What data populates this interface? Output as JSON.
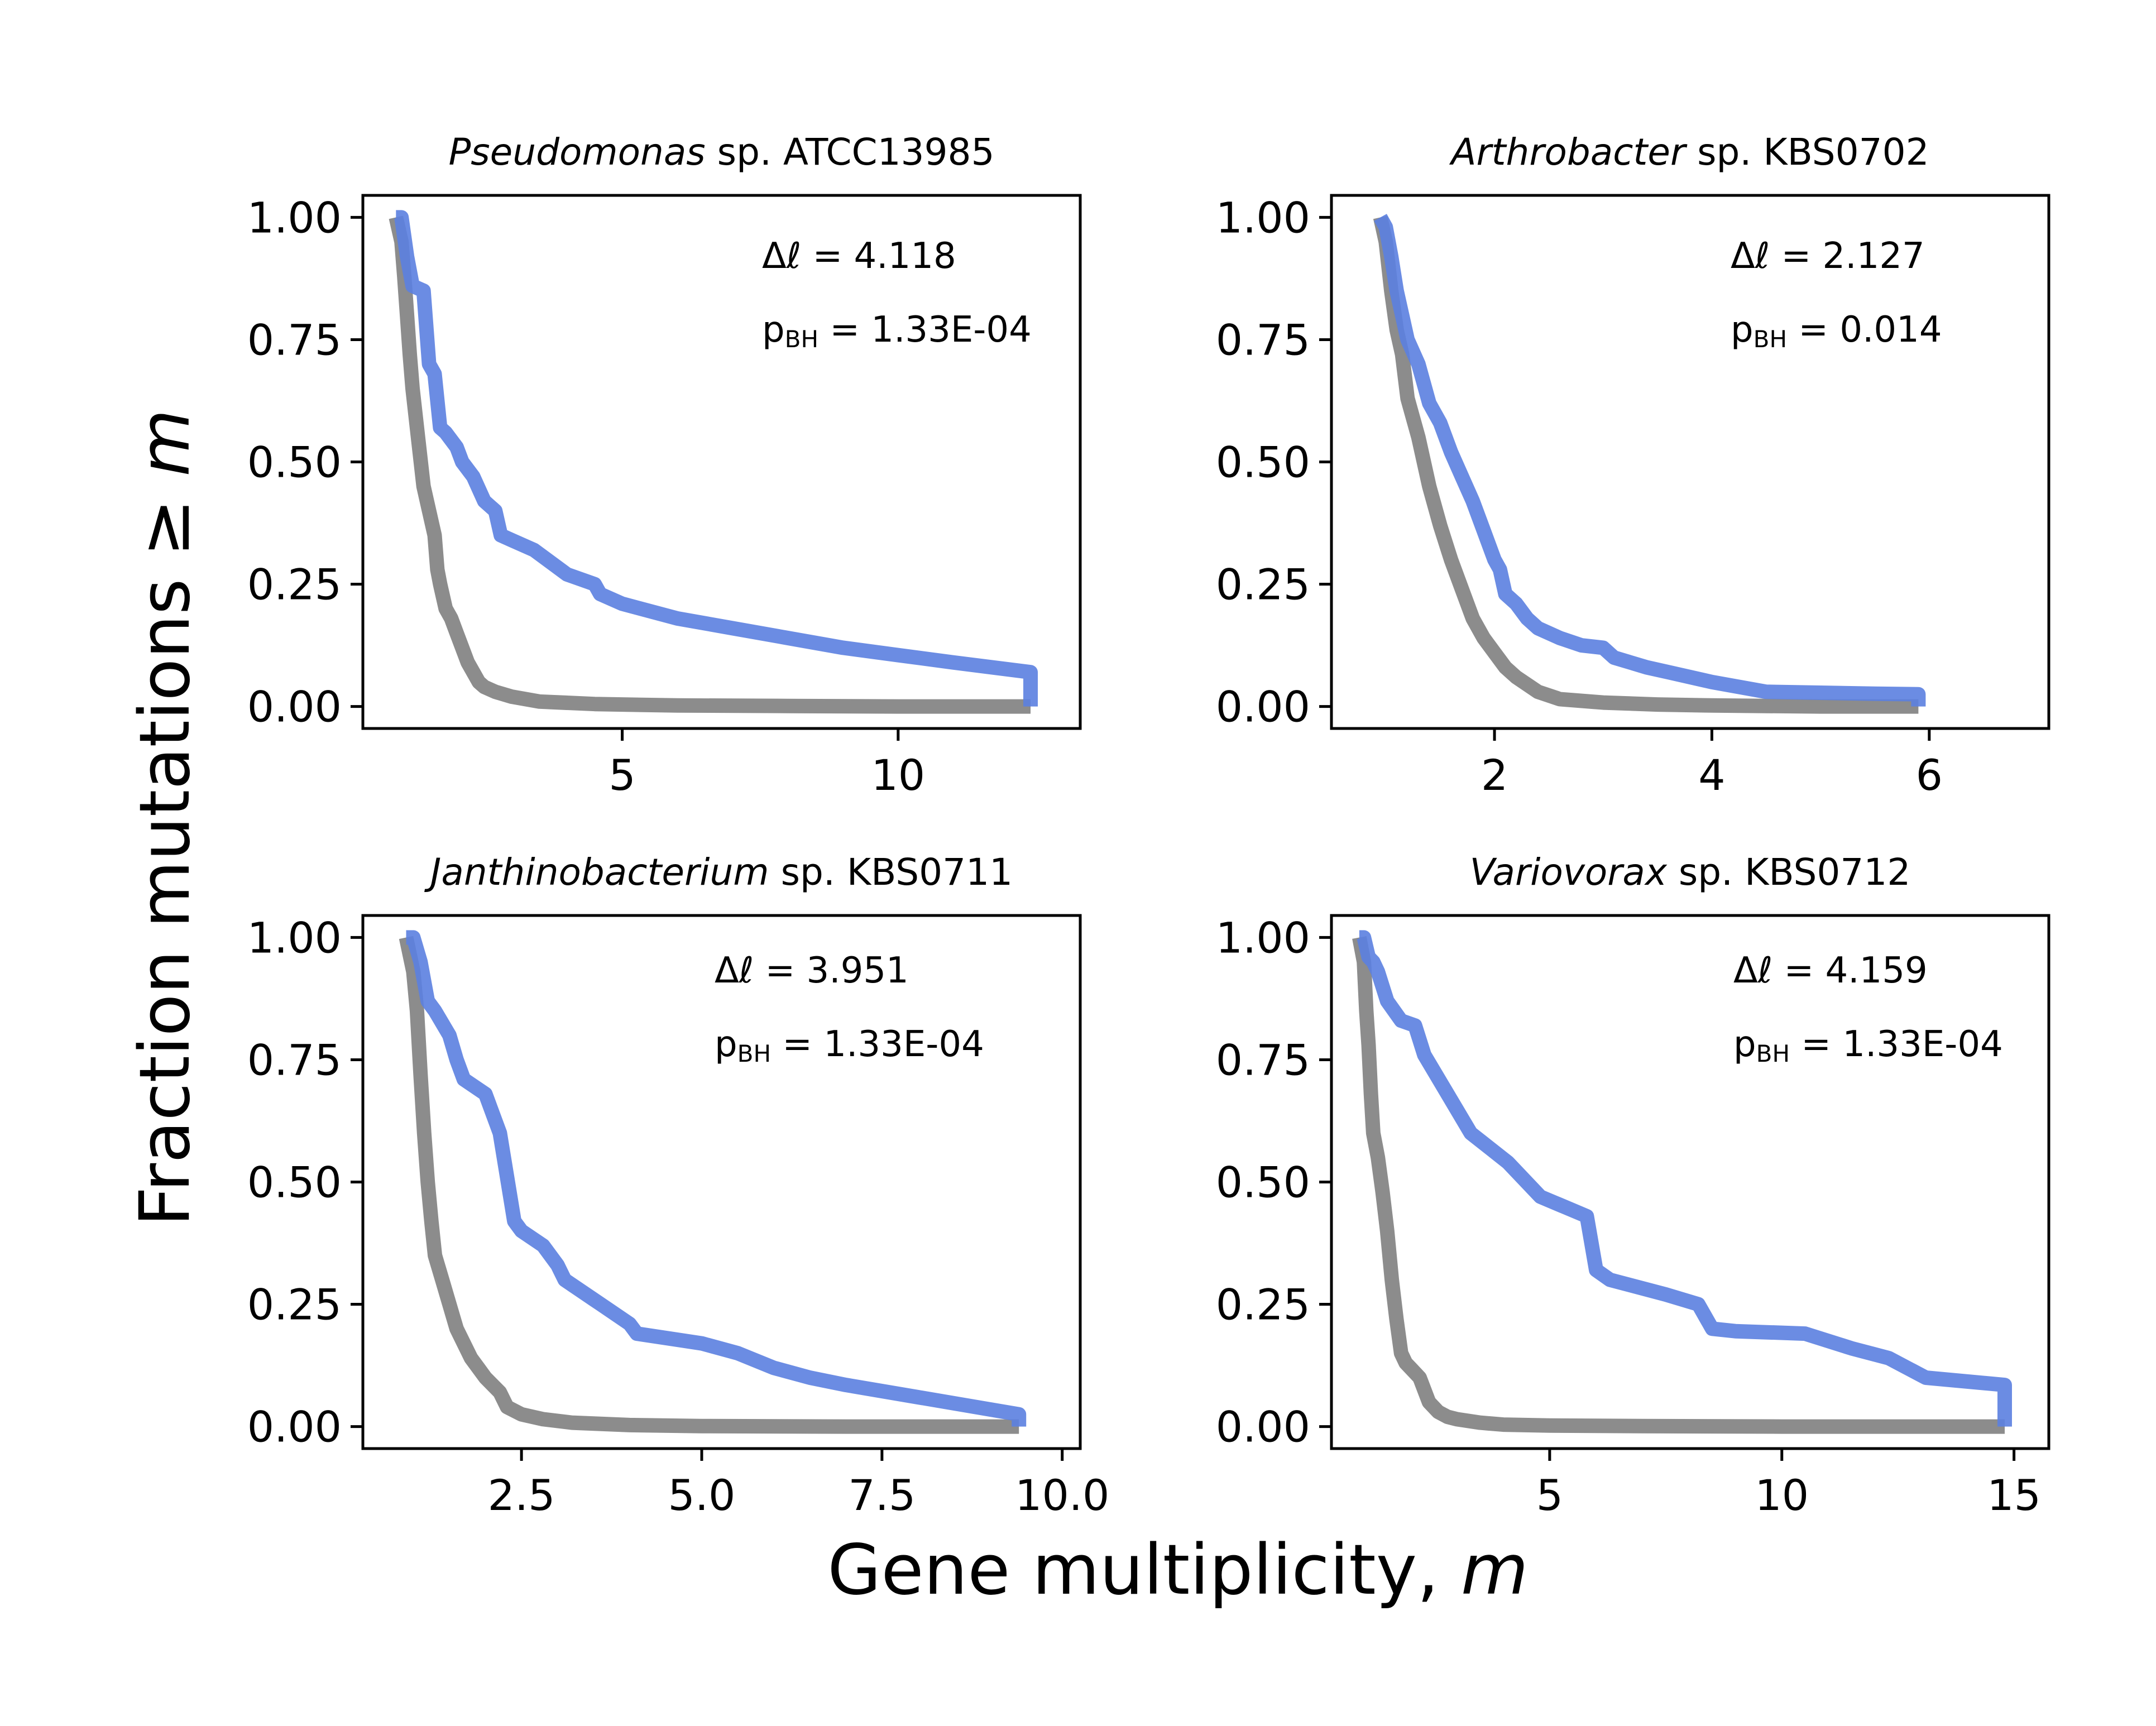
{
  "xlabel": "Gene multiplicity, ",
  "xlabel_var": "m",
  "ylabel": "Fraction mutations  ≥ ",
  "ylabel_var": "m",
  "colors": {
    "observed": "#5b7fe0",
    "null": "#7f7f7f"
  },
  "chart_data": [
    {
      "type": "line",
      "title_italic": "Pseudomonas",
      "title_rest": " sp. ATCC13985",
      "delta_label": "Δℓ = 4.118",
      "p_label_main": "p",
      "p_label_sub": "BH",
      "p_label_value": " = 1.33E-04",
      "xlim": [
        0.3,
        13.3
      ],
      "ylim": [
        -0.045,
        1.045
      ],
      "xticks": [
        5,
        10
      ],
      "xtick_labels": [
        "5",
        "10"
      ],
      "yticks": [
        0,
        0.25,
        0.5,
        0.75,
        1.0
      ],
      "ytick_labels": [
        "0.00",
        "0.25",
        "0.50",
        "0.75",
        "1.00"
      ],
      "series": [
        {
          "role": "null",
          "x": [
            0.9,
            1.0,
            1.05,
            1.1,
            1.15,
            1.2,
            1.3,
            1.4,
            1.5,
            1.6,
            1.65,
            1.7,
            1.8,
            1.9,
            2.0,
            2.1,
            2.2,
            2.3,
            2.4,
            2.5,
            2.7,
            3.0,
            3.5,
            4.5,
            6.0,
            8.0,
            10.0,
            12.4
          ],
          "y": [
            1.0,
            0.95,
            0.88,
            0.8,
            0.72,
            0.65,
            0.55,
            0.45,
            0.4,
            0.35,
            0.28,
            0.25,
            0.2,
            0.18,
            0.15,
            0.12,
            0.09,
            0.07,
            0.05,
            0.04,
            0.03,
            0.02,
            0.01,
            0.005,
            0.002,
            0.001,
            0.0,
            0.0
          ]
        },
        {
          "role": "observed",
          "x": [
            0.9,
            1.0,
            1.1,
            1.2,
            1.4,
            1.5,
            1.6,
            1.7,
            1.8,
            2.0,
            2.1,
            2.3,
            2.5,
            2.7,
            2.8,
            3.0,
            3.4,
            4.0,
            4.5,
            4.6,
            5.0,
            6.0,
            7.0,
            8.0,
            9.0,
            10.0,
            11.0,
            12.4,
            12.4
          ],
          "y": [
            1.0,
            1.0,
            0.92,
            0.86,
            0.85,
            0.7,
            0.68,
            0.57,
            0.56,
            0.53,
            0.5,
            0.47,
            0.42,
            0.4,
            0.35,
            0.34,
            0.32,
            0.27,
            0.25,
            0.23,
            0.21,
            0.18,
            0.16,
            0.14,
            0.12,
            0.105,
            0.09,
            0.07,
            0.0
          ]
        }
      ],
      "layout_note_px": null
    },
    {
      "type": "line",
      "title_italic": "Arthrobacter",
      "title_rest": " sp. KBS0702",
      "delta_label": "Δℓ = 2.127",
      "p_label_main": "p",
      "p_label_sub": "BH",
      "p_label_value": " = 0.014",
      "xlim": [
        0.5,
        7.1
      ],
      "ylim": [
        -0.045,
        1.045
      ],
      "xticks": [
        2,
        4,
        6
      ],
      "xtick_labels": [
        "2",
        "4",
        "6"
      ],
      "yticks": [
        0,
        0.25,
        0.5,
        0.75,
        1.0
      ],
      "ytick_labels": [
        "0.00",
        "0.25",
        "0.50",
        "0.75",
        "1.00"
      ],
      "series": [
        {
          "role": "null",
          "x": [
            0.95,
            1.0,
            1.05,
            1.1,
            1.15,
            1.2,
            1.3,
            1.4,
            1.5,
            1.6,
            1.7,
            1.8,
            1.9,
            2.0,
            2.1,
            2.2,
            2.4,
            2.6,
            3.0,
            3.5,
            4.0,
            4.5,
            5.0,
            5.5,
            5.9
          ],
          "y": [
            1.0,
            0.95,
            0.85,
            0.77,
            0.72,
            0.63,
            0.55,
            0.45,
            0.37,
            0.3,
            0.24,
            0.18,
            0.14,
            0.11,
            0.08,
            0.06,
            0.03,
            0.015,
            0.008,
            0.004,
            0.002,
            0.001,
            0.0,
            0.0,
            0.0
          ]
        },
        {
          "role": "observed",
          "x": [
            0.95,
            1.0,
            1.05,
            1.1,
            1.15,
            1.2,
            1.3,
            1.4,
            1.5,
            1.6,
            1.7,
            1.8,
            1.9,
            2.0,
            2.05,
            2.1,
            2.2,
            2.3,
            2.4,
            2.6,
            2.8,
            3.0,
            3.1,
            3.4,
            3.6,
            4.0,
            4.5,
            5.0,
            5.5,
            5.9,
            5.9
          ],
          "y": [
            1.0,
            0.98,
            0.92,
            0.85,
            0.8,
            0.75,
            0.7,
            0.62,
            0.58,
            0.52,
            0.47,
            0.42,
            0.36,
            0.3,
            0.28,
            0.23,
            0.21,
            0.18,
            0.16,
            0.14,
            0.125,
            0.12,
            0.1,
            0.08,
            0.07,
            0.05,
            0.03,
            0.028,
            0.026,
            0.025,
            0.0
          ]
        }
      ]
    },
    {
      "type": "line",
      "title_italic": "Janthinobacterium",
      "title_rest": " sp. KBS0711",
      "delta_label": "Δℓ = 3.951",
      "p_label_main": "p",
      "p_label_sub": "BH",
      "p_label_value": " = 1.33E-04",
      "xlim": [
        0.3,
        10.25
      ],
      "ylim": [
        -0.045,
        1.045
      ],
      "xticks": [
        2.5,
        5.0,
        7.5,
        10.0
      ],
      "xtick_labels": [
        "2.5",
        "5.0",
        "7.5",
        "10.0"
      ],
      "yticks": [
        0,
        0.25,
        0.5,
        0.75,
        1.0
      ],
      "ytick_labels": [
        "0.00",
        "0.25",
        "0.50",
        "0.75",
        "1.00"
      ],
      "series": [
        {
          "role": "null",
          "x": [
            0.9,
            1.0,
            1.05,
            1.1,
            1.15,
            1.2,
            1.25,
            1.3,
            1.4,
            1.5,
            1.6,
            1.7,
            1.8,
            1.9,
            2.0,
            2.2,
            2.3,
            2.5,
            2.8,
            3.2,
            4.0,
            5.0,
            7.0,
            9.4
          ],
          "y": [
            1.0,
            0.93,
            0.85,
            0.72,
            0.6,
            0.5,
            0.42,
            0.35,
            0.3,
            0.25,
            0.2,
            0.17,
            0.14,
            0.12,
            0.1,
            0.07,
            0.04,
            0.025,
            0.015,
            0.008,
            0.003,
            0.001,
            0.0,
            0.0
          ]
        },
        {
          "role": "observed",
          "x": [
            0.9,
            1.0,
            1.1,
            1.2,
            1.3,
            1.5,
            1.6,
            1.7,
            1.9,
            2.0,
            2.2,
            2.4,
            2.5,
            2.8,
            3.0,
            3.1,
            3.3,
            3.5,
            3.6,
            4.0,
            4.1,
            5.0,
            5.5,
            6.0,
            6.5,
            7.0,
            8.0,
            9.0,
            9.4,
            9.4
          ],
          "y": [
            1.0,
            1.0,
            0.95,
            0.87,
            0.85,
            0.8,
            0.75,
            0.71,
            0.69,
            0.68,
            0.6,
            0.42,
            0.4,
            0.37,
            0.33,
            0.3,
            0.28,
            0.26,
            0.25,
            0.21,
            0.19,
            0.17,
            0.15,
            0.12,
            0.1,
            0.085,
            0.06,
            0.035,
            0.025,
            0.0
          ]
        }
      ]
    },
    {
      "type": "line",
      "title_italic": "Variovorax",
      "title_rest": " sp. KBS0712",
      "delta_label": "Δℓ = 4.159",
      "p_label_main": "p",
      "p_label_sub": "BH",
      "p_label_value": " = 1.33E-04",
      "xlim": [
        0.3,
        15.75
      ],
      "ylim": [
        -0.045,
        1.045
      ],
      "xticks": [
        5,
        10,
        15
      ],
      "xtick_labels": [
        "5",
        "10",
        "15"
      ],
      "yticks": [
        0,
        0.25,
        0.5,
        0.75,
        1.0
      ],
      "ytick_labels": [
        "0.00",
        "0.25",
        "0.50",
        "0.75",
        "1.00"
      ],
      "series": [
        {
          "role": "null",
          "x": [
            0.9,
            1.0,
            1.05,
            1.1,
            1.15,
            1.2,
            1.3,
            1.4,
            1.5,
            1.6,
            1.7,
            1.8,
            1.9,
            2.0,
            2.1,
            2.2,
            2.4,
            2.6,
            2.8,
            3.0,
            3.5,
            4.0,
            5.0,
            7.0,
            10.0,
            14.8
          ],
          "y": [
            1.0,
            0.95,
            0.85,
            0.78,
            0.68,
            0.6,
            0.55,
            0.48,
            0.4,
            0.3,
            0.22,
            0.15,
            0.13,
            0.12,
            0.11,
            0.1,
            0.05,
            0.03,
            0.02,
            0.015,
            0.008,
            0.004,
            0.002,
            0.001,
            0.0,
            0.0
          ]
        },
        {
          "role": "observed",
          "x": [
            0.9,
            1.0,
            1.1,
            1.2,
            1.3,
            1.5,
            1.8,
            2.1,
            2.3,
            2.8,
            3.3,
            4.1,
            4.8,
            5.8,
            6.0,
            6.3,
            7.5,
            8.2,
            8.5,
            9.0,
            10.5,
            11.5,
            12.3,
            13.1,
            14.8,
            14.8
          ],
          "y": [
            1.0,
            1.0,
            0.96,
            0.95,
            0.93,
            0.87,
            0.83,
            0.82,
            0.76,
            0.68,
            0.6,
            0.54,
            0.47,
            0.43,
            0.32,
            0.3,
            0.27,
            0.25,
            0.2,
            0.195,
            0.19,
            0.16,
            0.14,
            0.1,
            0.085,
            0.0
          ]
        }
      ]
    }
  ]
}
